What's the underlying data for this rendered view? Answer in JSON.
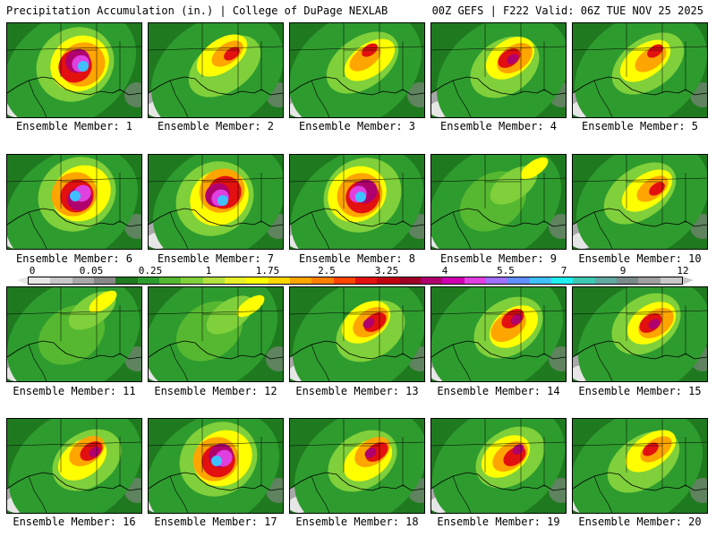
{
  "header": {
    "left_title": "Precipitation Accumulation (in.) | College of DuPage NEXLAB",
    "right_title": "00Z GEFS | F222 Valid: 06Z TUE NOV 25 2025"
  },
  "colorbar": {
    "labels": [
      "0",
      "0.05",
      "0.25",
      "1",
      "1.75",
      "2.5",
      "3.25",
      "4",
      "5.5",
      "7",
      "9",
      "12"
    ],
    "colors": [
      "#e6e6e6",
      "#c8c8c8",
      "#a8a8a8",
      "#888888",
      "#1f7a1f",
      "#2e9b2e",
      "#55b830",
      "#7fd03a",
      "#b4e040",
      "#e8f02a",
      "#ffff00",
      "#ffd700",
      "#ffa500",
      "#ff7f00",
      "#ff4500",
      "#e31010",
      "#c00010",
      "#9e0028",
      "#b0006e",
      "#d000b0",
      "#e040e0",
      "#a070ff",
      "#6090ff",
      "#40c0ff",
      "#20f0f0",
      "#40c8b4",
      "#60a8a0",
      "#7a8a8a",
      "#a0a0a0",
      "#c8c8c8"
    ]
  },
  "panels": [
    {
      "label": "Ensemble Member: 1",
      "intensity": "strong-core"
    },
    {
      "label": "Ensemble Member: 2",
      "intensity": "moderate"
    },
    {
      "label": "Ensemble Member: 3",
      "intensity": "moderate"
    },
    {
      "label": "Ensemble Member: 4",
      "intensity": "moderate-high"
    },
    {
      "label": "Ensemble Member: 5",
      "intensity": "moderate"
    },
    {
      "label": "Ensemble Member: 6",
      "intensity": "strong-core"
    },
    {
      "label": "Ensemble Member: 7",
      "intensity": "strong-core"
    },
    {
      "label": "Ensemble Member: 8",
      "intensity": "strong-core"
    },
    {
      "label": "Ensemble Member: 9",
      "intensity": "light"
    },
    {
      "label": "Ensemble Member: 10",
      "intensity": "moderate"
    },
    {
      "label": "Ensemble Member: 11",
      "intensity": "light"
    },
    {
      "label": "Ensemble Member: 12",
      "intensity": "light"
    },
    {
      "label": "Ensemble Member: 13",
      "intensity": "moderate-high"
    },
    {
      "label": "Ensemble Member: 14",
      "intensity": "moderate-high"
    },
    {
      "label": "Ensemble Member: 15",
      "intensity": "moderate-high"
    },
    {
      "label": "Ensemble Member: 16",
      "intensity": "moderate-high"
    },
    {
      "label": "Ensemble Member: 17",
      "intensity": "strong-core"
    },
    {
      "label": "Ensemble Member: 18",
      "intensity": "moderate-high"
    },
    {
      "label": "Ensemble Member: 19",
      "intensity": "moderate-high"
    },
    {
      "label": "Ensemble Member: 20",
      "intensity": "moderate"
    }
  ]
}
